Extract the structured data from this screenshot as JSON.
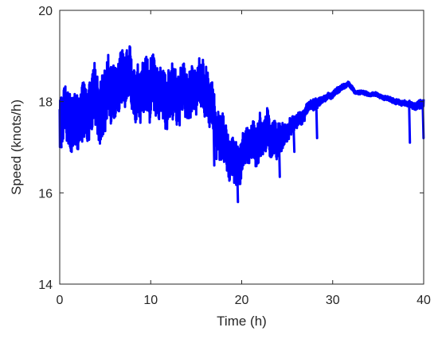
{
  "chart_data": {
    "type": "line",
    "xlabel": "Time (h)",
    "ylabel": "Speed (knots/h)",
    "xlim": [
      0,
      40
    ],
    "ylim": [
      14,
      20
    ],
    "x_ticks": [
      0,
      10,
      20,
      30,
      40
    ],
    "y_ticks": [
      14,
      16,
      18,
      20
    ],
    "grid": false,
    "box": true,
    "series": [
      {
        "color": "#0000ff",
        "style": "noisy",
        "x": [
          0,
          0.5,
          1,
          2,
          3,
          4,
          5,
          6,
          7,
          8,
          9,
          10,
          11,
          12,
          13,
          14,
          15,
          16,
          16.8,
          17.2,
          18,
          18.5,
          19,
          19.5,
          20,
          21,
          22,
          23,
          24,
          25,
          26,
          27,
          28,
          29,
          30,
          31,
          31.8,
          32.5,
          33,
          35,
          37,
          38,
          38.5,
          39,
          40
        ],
        "y": [
          17.5,
          17.55,
          17.6,
          17.7,
          17.8,
          17.95,
          18.05,
          18.2,
          18.3,
          18.3,
          18.35,
          18.4,
          18.2,
          18.1,
          18.15,
          18.25,
          18.2,
          18.05,
          17.9,
          17.4,
          17.1,
          16.9,
          16.65,
          16.6,
          16.9,
          17.1,
          17.25,
          17.35,
          17.2,
          17.3,
          17.55,
          17.75,
          17.9,
          18.05,
          18.15,
          18.3,
          18.4,
          18.2,
          18.2,
          18.15,
          18.0,
          17.95,
          17.95,
          17.9,
          17.95
        ],
        "noise": [
          0.55,
          0.6,
          0.6,
          0.6,
          0.6,
          0.65,
          0.7,
          0.6,
          0.6,
          0.55,
          0.6,
          0.6,
          0.55,
          0.6,
          0.55,
          0.5,
          0.5,
          0.55,
          0.5,
          0.5,
          0.5,
          0.45,
          0.45,
          0.45,
          0.4,
          0.4,
          0.45,
          0.4,
          0.35,
          0.2,
          0.15,
          0.12,
          0.12,
          0.06,
          0.06,
          0.06,
          0.05,
          0.04,
          0.04,
          0.04,
          0.05,
          0.05,
          0.05,
          0.08,
          0.1
        ]
      }
    ],
    "spikes": [
      {
        "x": 0.1,
        "y": 17.0
      },
      {
        "x": 16.9,
        "y": 16.6
      },
      {
        "x": 19.5,
        "y": 15.8
      },
      {
        "x": 24.1,
        "y": 16.35
      },
      {
        "x": 25.7,
        "y": 16.9
      },
      {
        "x": 28.2,
        "y": 17.2
      },
      {
        "x": 38.4,
        "y": 17.1
      },
      {
        "x": 39.9,
        "y": 17.2
      }
    ]
  }
}
